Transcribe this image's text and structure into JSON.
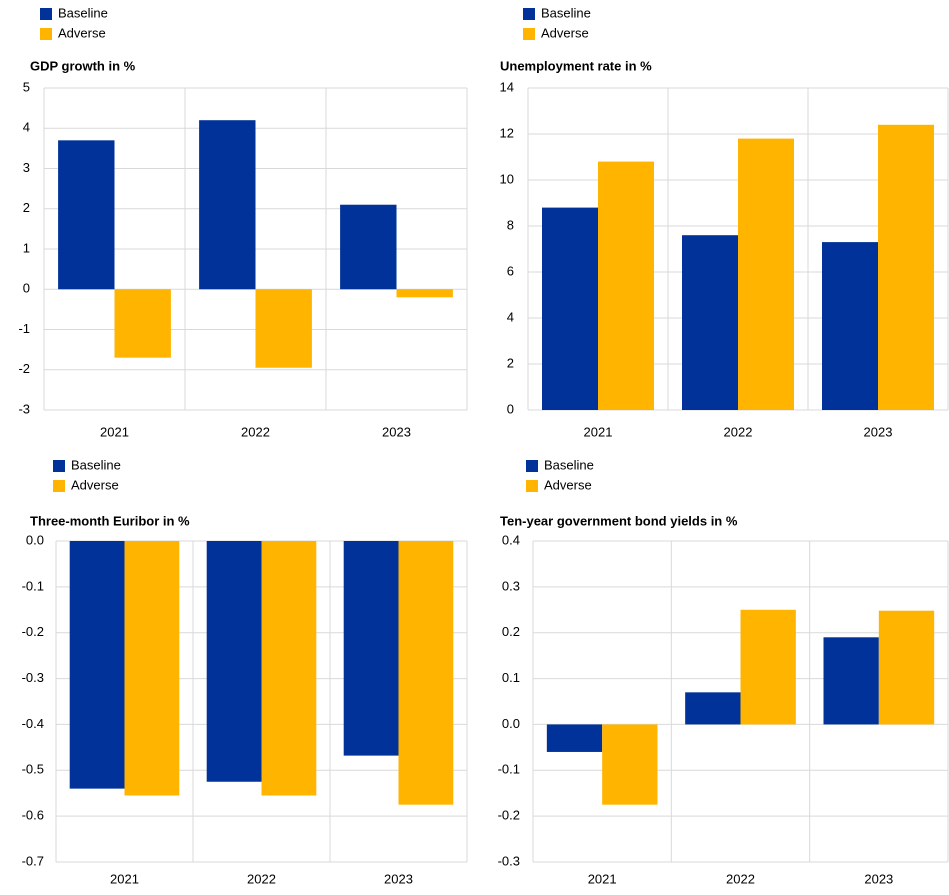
{
  "chart_data": [
    {
      "type": "bar",
      "title": "GDP growth in %",
      "categories": [
        "2021",
        "2022",
        "2023"
      ],
      "series": [
        {
          "name": "Baseline",
          "color": "#003299",
          "values": [
            3.7,
            4.2,
            2.1
          ]
        },
        {
          "name": "Adverse",
          "color": "#ffb400",
          "values": [
            -1.7,
            -1.95,
            -0.2
          ]
        }
      ],
      "ylim": [
        -3,
        5
      ],
      "yticks": [
        -3,
        -2,
        -1,
        0,
        1,
        2,
        3,
        4,
        5
      ],
      "grid": true
    },
    {
      "type": "bar",
      "title": "Unemployment rate in %",
      "categories": [
        "2021",
        "2022",
        "2023"
      ],
      "series": [
        {
          "name": "Baseline",
          "color": "#003299",
          "values": [
            8.8,
            7.6,
            7.3
          ]
        },
        {
          "name": "Adverse",
          "color": "#ffb400",
          "values": [
            10.8,
            11.8,
            12.4
          ]
        }
      ],
      "ylim": [
        0,
        14
      ],
      "yticks": [
        0,
        2,
        4,
        6,
        8,
        10,
        12,
        14
      ],
      "grid": true
    },
    {
      "type": "bar",
      "title": "Three-month Euribor in %",
      "categories": [
        "2021",
        "2022",
        "2023"
      ],
      "series": [
        {
          "name": "Baseline",
          "color": "#003299",
          "values": [
            -0.54,
            -0.525,
            -0.468
          ]
        },
        {
          "name": "Adverse",
          "color": "#ffb400",
          "values": [
            -0.555,
            -0.555,
            -0.575
          ]
        }
      ],
      "ylim": [
        -0.7,
        0
      ],
      "yticks": [
        -0.7,
        -0.6,
        -0.5,
        -0.4,
        -0.3,
        -0.2,
        -0.1,
        {
          "value": 0,
          "label": "0.0"
        }
      ],
      "grid": true
    },
    {
      "type": "bar",
      "title": "Ten-year government bond yields in %",
      "categories": [
        "2021",
        "2022",
        "2023"
      ],
      "series": [
        {
          "name": "Baseline",
          "color": "#003299",
          "values": [
            -0.06,
            0.07,
            0.19
          ]
        },
        {
          "name": "Adverse",
          "color": "#ffb400",
          "values": [
            -0.175,
            0.25,
            0.248
          ]
        }
      ],
      "ylim": [
        -0.3,
        0.4
      ],
      "yticks": [
        -0.3,
        -0.2,
        -0.1,
        {
          "value": 0,
          "label": "0.0"
        },
        0.1,
        0.2,
        0.3,
        0.4
      ],
      "grid": true
    }
  ]
}
